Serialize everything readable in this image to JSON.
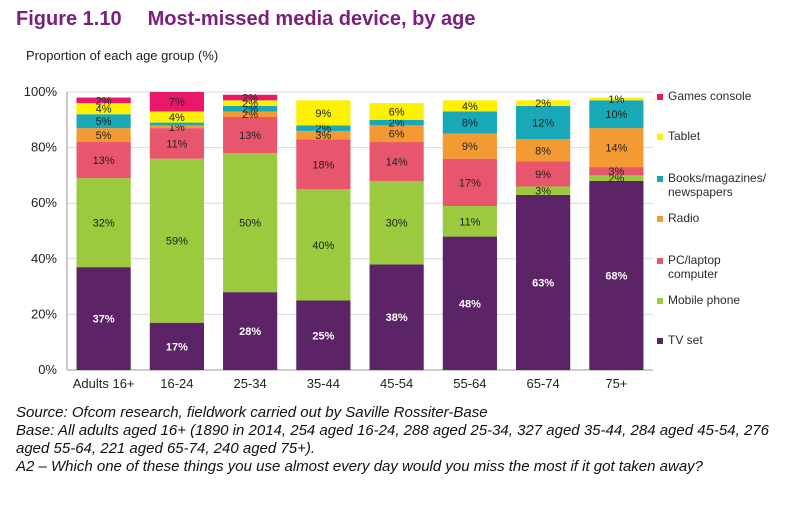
{
  "figure": {
    "number": "Figure 1.10",
    "title": "Most-missed media device, by age"
  },
  "chart_data": {
    "type": "bar",
    "stacked": true,
    "ylabel": "Proportion of each age group (%)",
    "ylim": [
      0,
      100
    ],
    "yticks": [
      "0%",
      "20%",
      "40%",
      "60%",
      "80%",
      "100%"
    ],
    "grid": true,
    "legend_position": "right",
    "categories": [
      "Adults 16+",
      "16-24",
      "25-34",
      "35-44",
      "45-54",
      "55-64",
      "65-74",
      "75+"
    ],
    "series": [
      {
        "name": "TV set",
        "color": "#5c2466",
        "values": [
          37,
          17,
          28,
          25,
          38,
          48,
          63,
          68
        ],
        "labels": [
          "37%",
          "17%",
          "28%",
          "25%",
          "38%",
          "48%",
          "63%",
          "68%"
        ]
      },
      {
        "name": "Mobile phone",
        "color": "#9bca3e",
        "values": [
          32,
          59,
          50,
          40,
          30,
          11,
          3,
          2
        ],
        "labels": [
          "32%",
          "59%",
          "50%",
          "40%",
          "30%",
          "11%",
          "3%",
          "2%"
        ]
      },
      {
        "name": "PC/laptop computer",
        "color": "#e8566d",
        "values": [
          13,
          11,
          13,
          18,
          14,
          17,
          9,
          3
        ],
        "labels": [
          "13%",
          "11%",
          "13%",
          "18%",
          "14%",
          "17%",
          "9%",
          "3%"
        ]
      },
      {
        "name": "Radio",
        "color": "#f49a32",
        "values": [
          5,
          1,
          2,
          3,
          6,
          9,
          8,
          14
        ],
        "labels": [
          "5%",
          "1%",
          "2%",
          "3%",
          "6%",
          "9%",
          "8%",
          "14%"
        ]
      },
      {
        "name": "Books/magazines/ newspapers",
        "color": "#18a8b8",
        "values": [
          5,
          1,
          2,
          2,
          2,
          8,
          12,
          10
        ],
        "labels": [
          "5%",
          "",
          "2%",
          "2%",
          "2%",
          "8%",
          "12%",
          "10%"
        ]
      },
      {
        "name": "Tablet",
        "color": "#fdf100",
        "values": [
          4,
          4,
          2,
          9,
          6,
          4,
          2,
          1
        ],
        "labels": [
          "4%",
          "4%",
          "2%",
          "9%",
          "6%",
          "4%",
          "2%",
          "1%"
        ]
      },
      {
        "name": "Games console",
        "color": "#e8196b",
        "values": [
          2,
          7,
          2,
          0,
          0,
          0,
          0,
          0
        ],
        "labels": [
          "2%",
          "7%",
          "2%",
          "",
          "",
          "",
          "",
          ""
        ]
      }
    ]
  },
  "notes": {
    "source": "Source: Ofcom research, fieldwork carried out by Saville Rossiter-Base",
    "base": "Base: All adults aged 16+ (1890 in 2014, 254 aged 16-24, 288 aged 25-34, 327 aged 35-44, 284 aged 45-54, 276 aged 55-64, 221 aged 65-74, 240 aged 75+).",
    "question": "A2 – Which one of these things you use almost every day would you miss the most if it got taken away?"
  }
}
